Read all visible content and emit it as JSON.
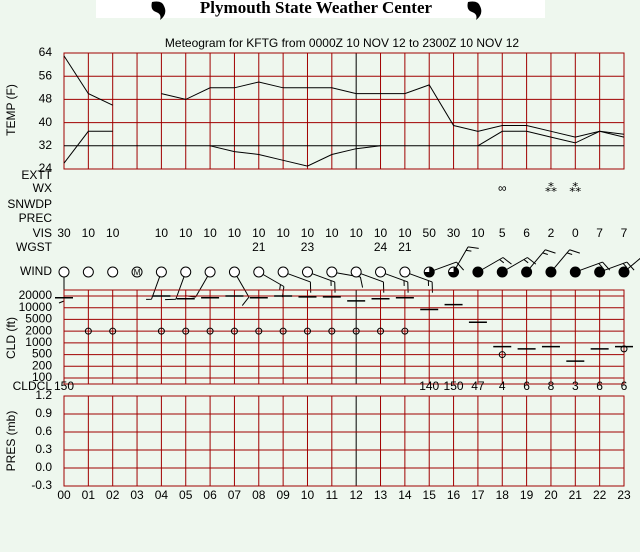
{
  "header": {
    "title": "Plymouth State Weather Center"
  },
  "chart_data": {
    "type": "meteogram",
    "title": "Meteogram for KFTG from 0000Z 10 NOV 12 to 2300Z 10 NOV 12",
    "categories": [
      "00",
      "01",
      "02",
      "03",
      "04",
      "05",
      "06",
      "07",
      "08",
      "09",
      "10",
      "11",
      "12",
      "13",
      "14",
      "15",
      "16",
      "17",
      "18",
      "19",
      "20",
      "21",
      "22",
      "23"
    ],
    "ref_index": 12,
    "grid": true,
    "grid_color": "#a00000",
    "temperature": {
      "label": "TEMP (F)",
      "ylim": [
        24,
        64
      ],
      "yticks": [
        24,
        32,
        40,
        48,
        56,
        64
      ],
      "ref_line": 32,
      "series": [
        {
          "color": "#000000",
          "values": [
            63,
            50,
            46,
            null,
            50,
            48,
            52,
            52,
            54,
            52,
            52,
            52,
            50,
            50,
            50,
            53,
            39,
            37,
            39,
            39,
            37,
            35,
            37,
            36
          ]
        },
        {
          "color": "#000000",
          "values": [
            26,
            37,
            37,
            null,
            null,
            null,
            32,
            30,
            29,
            27,
            25,
            29,
            31,
            32,
            null,
            null,
            null,
            32,
            37,
            37,
            35,
            33,
            37,
            35
          ]
        }
      ]
    },
    "rows": [
      {
        "label": "EXTT"
      },
      {
        "label": "WX",
        "values": [
          null,
          null,
          null,
          null,
          null,
          null,
          null,
          null,
          null,
          null,
          null,
          null,
          null,
          null,
          null,
          null,
          null,
          null,
          "∞",
          null,
          "⁂",
          "⁂",
          null,
          null
        ]
      },
      {
        "label": "SNWDP"
      },
      {
        "label": "PREC"
      },
      {
        "label": "VIS",
        "values": [
          30,
          10,
          10,
          null,
          10,
          10,
          10,
          10,
          10,
          10,
          10,
          10,
          10,
          10,
          10,
          50,
          30,
          10,
          5,
          6,
          2,
          0,
          7,
          7
        ]
      },
      {
        "label": "WGST",
        "values": [
          null,
          null,
          null,
          null,
          null,
          null,
          null,
          null,
          21,
          null,
          23,
          null,
          null,
          24,
          21,
          null,
          null,
          null,
          null,
          null,
          null,
          null,
          null,
          null
        ]
      }
    ],
    "wind": {
      "label": "WIND",
      "missing": "M",
      "cover": [
        0,
        0,
        0,
        null,
        0,
        0,
        0,
        0,
        0,
        0,
        0,
        0,
        0,
        0,
        0,
        6,
        6,
        8,
        8,
        8,
        8,
        8,
        8,
        8
      ],
      "direction": [
        180,
        null,
        null,
        null,
        200,
        200,
        210,
        150,
        120,
        110,
        110,
        100,
        110,
        110,
        110,
        70,
        30,
        60,
        60,
        40,
        40,
        70,
        70,
        50
      ],
      "speed": [
        5,
        0,
        0,
        null,
        5,
        10,
        10,
        10,
        15,
        10,
        15,
        10,
        10,
        15,
        15,
        10,
        15,
        15,
        15,
        15,
        15,
        15,
        15,
        15
      ]
    },
    "clouds": {
      "label": "CLD (ft)",
      "ylim": [
        100,
        20000
      ],
      "yticks": [
        20000,
        10000,
        5000,
        2000,
        1000,
        500,
        200,
        100
      ],
      "series": [
        {
          "color": "#000000",
          "marker": "dash",
          "values": [
            18000,
            null,
            null,
            null,
            20000,
            17000,
            18000,
            20000,
            18000,
            20000,
            19000,
            19000,
            15000,
            17000,
            18000,
            9000,
            12000,
            4000,
            800,
            700,
            800,
            300,
            700,
            800
          ]
        },
        {
          "color": "#000000",
          "marker": "circle",
          "values": [
            null,
            2000,
            2000,
            null,
            2000,
            2000,
            2000,
            2000,
            2000,
            2000,
            2000,
            2000,
            2000,
            2000,
            2000,
            null,
            null,
            null,
            500,
            null,
            null,
            null,
            null,
            700
          ]
        }
      ]
    },
    "cldcl": {
      "label": "CLDCL",
      "values": [
        150,
        null,
        null,
        null,
        null,
        null,
        null,
        null,
        null,
        null,
        null,
        null,
        null,
        null,
        null,
        140,
        150,
        47,
        4,
        6,
        8,
        3,
        6,
        6
      ]
    },
    "pressure": {
      "label": "PRES (mb)",
      "ylim": [
        -0.3,
        1.2
      ],
      "yticks": [
        {
          "value": -0.3,
          "label": "-0.3"
        },
        {
          "value": 0,
          "label": "0.0"
        },
        0.3,
        0.6,
        0.9,
        1.2
      ]
    }
  }
}
